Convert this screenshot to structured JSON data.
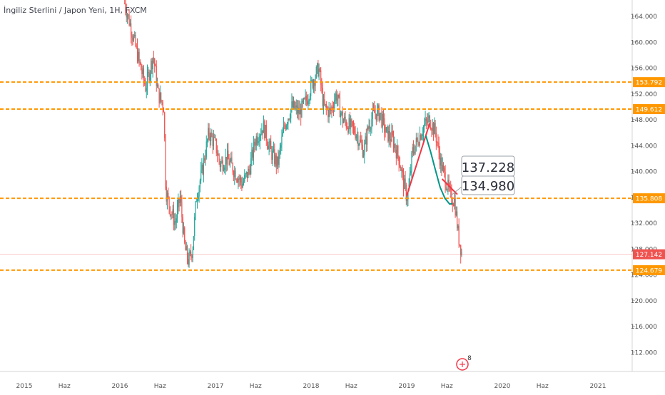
{
  "chart_data": {
    "type": "candlestick",
    "title": "İngiliz Sterlini / Japon Yeni, 1H, FXCM",
    "colors": {
      "up": "#26a69a",
      "down": "#ef5350",
      "level": "#ff9800",
      "price_line": "#ef5350",
      "axis_text": "#555555",
      "callout": "#2a2e39"
    },
    "y_axis": {
      "min": 109.0,
      "max": 166.5,
      "ticks": [
        112.0,
        116.0,
        120.0,
        124.0,
        128.0,
        132.0,
        136.0,
        140.0,
        144.0,
        148.0,
        152.0,
        156.0,
        160.0,
        164.0
      ],
      "tick_labels": [
        "112.000",
        "116.000",
        "120.000",
        "124.000",
        "128.000",
        "132.000",
        "136.000",
        "140.000",
        "144.000",
        "148.000",
        "152.000",
        "156.000",
        "160.000",
        "164.000"
      ]
    },
    "x_axis": {
      "ticks": [
        {
          "t": 2015.0,
          "label": "2015"
        },
        {
          "t": 2015.42,
          "label": "Haz"
        },
        {
          "t": 2016.0,
          "label": "2016"
        },
        {
          "t": 2016.42,
          "label": "Haz"
        },
        {
          "t": 2017.0,
          "label": "2017"
        },
        {
          "t": 2017.42,
          "label": "Haz"
        },
        {
          "t": 2018.0,
          "label": "2018"
        },
        {
          "t": 2018.42,
          "label": "Haz"
        },
        {
          "t": 2019.0,
          "label": "2019"
        },
        {
          "t": 2019.42,
          "label": "Haz"
        },
        {
          "t": 2020.0,
          "label": "2020"
        },
        {
          "t": 2020.42,
          "label": "Haz"
        },
        {
          "t": 2021.0,
          "label": "2021"
        }
      ]
    },
    "horizontal_levels": [
      {
        "value": 153.792,
        "label": "153.792"
      },
      {
        "value": 149.612,
        "label": "149.612"
      },
      {
        "value": 135.808,
        "label": "135.808"
      },
      {
        "value": 124.679,
        "label": "124.679"
      }
    ],
    "last_price": {
      "value": 127.142,
      "label": "127.142"
    },
    "series_path": [
      [
        2016.05,
        166.0
      ],
      [
        2016.12,
        162.0
      ],
      [
        2016.2,
        157.0
      ],
      [
        2016.27,
        153.0
      ],
      [
        2016.35,
        158.0
      ],
      [
        2016.4,
        152.0
      ],
      [
        2016.46,
        150.0
      ],
      [
        2016.48,
        137.0
      ],
      [
        2016.53,
        134.0
      ],
      [
        2016.58,
        132.0
      ],
      [
        2016.63,
        136.0
      ],
      [
        2016.68,
        128.0
      ],
      [
        2016.72,
        126.0
      ],
      [
        2016.76,
        128.0
      ],
      [
        2016.8,
        136.0
      ],
      [
        2016.86,
        140.0
      ],
      [
        2016.93,
        146.0
      ],
      [
        2017.0,
        144.0
      ],
      [
        2017.05,
        141.0
      ],
      [
        2017.12,
        142.0
      ],
      [
        2017.2,
        140.0
      ],
      [
        2017.28,
        138.0
      ],
      [
        2017.35,
        140.0
      ],
      [
        2017.42,
        145.0
      ],
      [
        2017.5,
        147.0
      ],
      [
        2017.58,
        143.0
      ],
      [
        2017.65,
        141.0
      ],
      [
        2017.72,
        147.0
      ],
      [
        2017.8,
        150.0
      ],
      [
        2017.88,
        149.0
      ],
      [
        2017.95,
        151.0
      ],
      [
        2018.02,
        154.0
      ],
      [
        2018.08,
        156.0
      ],
      [
        2018.13,
        150.0
      ],
      [
        2018.2,
        149.0
      ],
      [
        2018.26,
        152.0
      ],
      [
        2018.33,
        148.0
      ],
      [
        2018.4,
        147.0
      ],
      [
        2018.47,
        146.0
      ],
      [
        2018.55,
        143.0
      ],
      [
        2018.6,
        147.0
      ],
      [
        2018.66,
        149.0
      ],
      [
        2018.72,
        149.0
      ],
      [
        2018.78,
        146.0
      ],
      [
        2018.85,
        145.0
      ],
      [
        2018.92,
        142.0
      ],
      [
        2018.97,
        138.0
      ],
      [
        2019.0,
        136.0
      ],
      [
        2019.02,
        137.0
      ],
      [
        2019.06,
        143.0
      ],
      [
        2019.12,
        145.0
      ],
      [
        2019.18,
        147.0
      ],
      [
        2019.24,
        148.0
      ],
      [
        2019.3,
        146.0
      ],
      [
        2019.36,
        141.0
      ],
      [
        2019.42,
        138.0
      ],
      [
        2019.46,
        136.0
      ],
      [
        2019.5,
        135.5
      ],
      [
        2019.54,
        130.0
      ],
      [
        2019.58,
        127.1
      ]
    ],
    "drawings": {
      "red_lines": [
        [
          [
            2019.0,
            136.2
          ],
          [
            2019.24,
            147.4
          ]
        ],
        [
          [
            2019.37,
            138.8
          ],
          [
            2019.53,
            136.4
          ]
        ]
      ],
      "teal_curve": [
        [
          2019.2,
          145.5
        ],
        [
          2019.25,
          143.0
        ],
        [
          2019.3,
          140.2
        ],
        [
          2019.35,
          137.5
        ],
        [
          2019.4,
          135.8
        ],
        [
          2019.45,
          134.9
        ],
        [
          2019.48,
          135.0
        ]
      ]
    },
    "callouts": [
      {
        "text": "137.228",
        "value": 137.228
      },
      {
        "text": "134.980",
        "value": 134.98
      }
    ],
    "event_badge": {
      "count": "8"
    }
  }
}
